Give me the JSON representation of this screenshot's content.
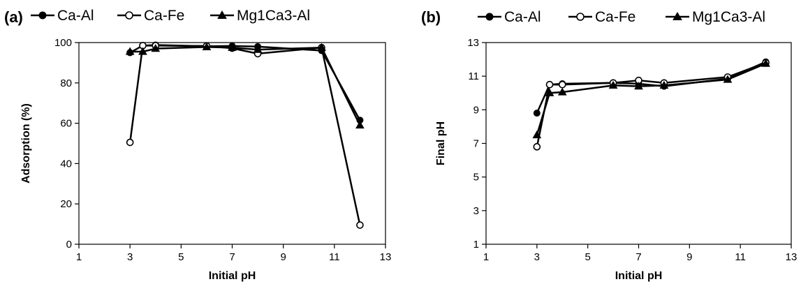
{
  "colors": {
    "line": "#000000",
    "background": "#ffffff",
    "hollow_fill": "#ffffff"
  },
  "chart_data": [
    {
      "type": "line",
      "panel_label": "(a)",
      "title": "",
      "xlabel": "Initial pH",
      "ylabel": "Adsorption (%)",
      "xlim": [
        1,
        13
      ],
      "ylim": [
        0,
        100
      ],
      "xticks": [
        1,
        3,
        5,
        7,
        9,
        11,
        13
      ],
      "yticks": [
        0,
        20,
        40,
        60,
        80,
        100
      ],
      "grid": false,
      "legend_position": "top",
      "series": [
        {
          "name": "Ca-Al",
          "marker": "filled-circle",
          "x": [
            3,
            3.5,
            4,
            6,
            7,
            8,
            10.5,
            12
          ],
          "y": [
            95,
            98.5,
            98.8,
            98.2,
            98.3,
            98,
            96,
            61.5
          ]
        },
        {
          "name": "Ca-Fe",
          "marker": "hollow-circle",
          "x": [
            3,
            3.5,
            4,
            6,
            7,
            8,
            10.5,
            12
          ],
          "y": [
            50.5,
            98.5,
            98.5,
            98.3,
            97.2,
            94.5,
            97.5,
            9.5
          ]
        },
        {
          "name": "Mg1Ca3-Al",
          "marker": "filled-triangle",
          "x": [
            3,
            3.5,
            4,
            6,
            7,
            8,
            10.5,
            12
          ],
          "y": [
            95.5,
            95.5,
            97,
            97.8,
            97.5,
            96.5,
            97.5,
            59
          ]
        }
      ]
    },
    {
      "type": "line",
      "panel_label": "(b)",
      "title": "",
      "xlabel": "Initial pH",
      "ylabel": "Final pH",
      "xlim": [
        1,
        13
      ],
      "ylim": [
        1,
        13
      ],
      "xticks": [
        1,
        3,
        5,
        7,
        9,
        11,
        13
      ],
      "yticks": [
        1,
        3,
        5,
        7,
        9,
        11,
        13
      ],
      "grid": false,
      "legend_position": "top",
      "series": [
        {
          "name": "Ca-Al",
          "marker": "filled-circle",
          "x": [
            3,
            3.5,
            4,
            6,
            7,
            8,
            10.5,
            12
          ],
          "y": [
            8.8,
            10.5,
            10.55,
            10.6,
            10.55,
            10.4,
            10.85,
            11.85
          ]
        },
        {
          "name": "Ca-Fe",
          "marker": "hollow-circle",
          "x": [
            3,
            3.5,
            4,
            6,
            7,
            8,
            10.5,
            12
          ],
          "y": [
            6.8,
            10.5,
            10.5,
            10.6,
            10.75,
            10.6,
            10.95,
            11.8
          ]
        },
        {
          "name": "Mg1Ca3-Al",
          "marker": "filled-triangle",
          "x": [
            3,
            3.5,
            4,
            6,
            7,
            8,
            10.5,
            12
          ],
          "y": [
            7.5,
            10,
            10.05,
            10.45,
            10.4,
            10.45,
            10.8,
            11.75
          ]
        }
      ]
    }
  ]
}
